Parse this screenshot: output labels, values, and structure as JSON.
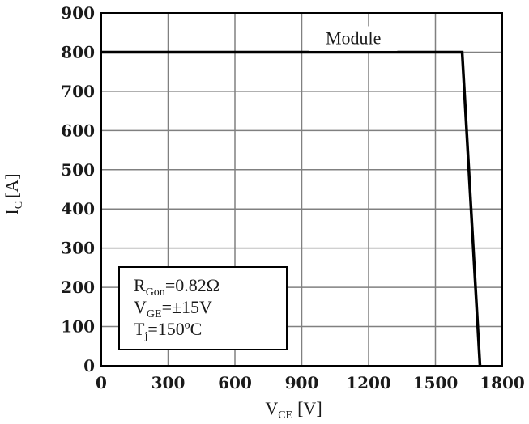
{
  "chart_data": {
    "type": "line",
    "title": "",
    "xlabel": {
      "main": "V",
      "sub": "CE",
      "unit": "[V]"
    },
    "ylabel": {
      "main": "I",
      "sub": "C",
      "unit": "[A]"
    },
    "xlim": [
      0,
      1800
    ],
    "ylim": [
      0,
      900
    ],
    "x_ticks": [
      0,
      300,
      600,
      900,
      1200,
      1500,
      1800
    ],
    "y_ticks": [
      0,
      100,
      200,
      300,
      400,
      500,
      600,
      700,
      800,
      900
    ],
    "grid": true,
    "series": [
      {
        "name": "Module",
        "x": [
          0,
          1620,
          1700
        ],
        "y": [
          800,
          800,
          0
        ]
      }
    ],
    "annotations": {
      "box_lines": [
        {
          "main": "R",
          "sub": "Gon",
          "rest": "=0.82Ω"
        },
        {
          "main": "V",
          "sub": "GE",
          "rest": "=±15V"
        },
        {
          "main": "T",
          "sub": "j",
          "rest": "=150ºC"
        }
      ]
    },
    "colors": {
      "line": "#000000",
      "grid": "#808080",
      "frame": "#000000"
    }
  }
}
